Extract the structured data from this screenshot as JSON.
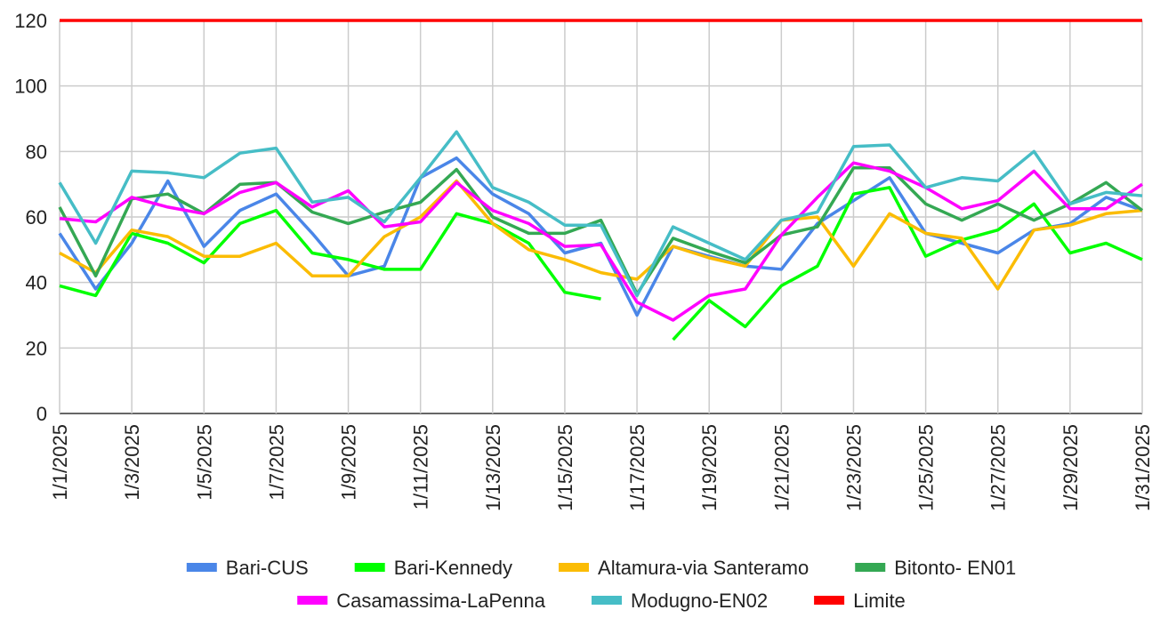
{
  "chart_data": {
    "type": "line",
    "categories": [
      "1/1/2025",
      null,
      "1/3/2025",
      null,
      "1/5/2025",
      null,
      "1/7/2025",
      null,
      "1/9/2025",
      null,
      "1/11/2025",
      null,
      "1/13/2025",
      null,
      "1/15/2025",
      null,
      "1/17/2025",
      null,
      "1/19/2025",
      null,
      "1/21/2025",
      null,
      "1/23/2025",
      null,
      "1/25/2025",
      null,
      "1/27/2025",
      null,
      "1/29/2025",
      null,
      "1/31/2025"
    ],
    "series": [
      {
        "name": "Bari-CUS",
        "color": "#4a86e8",
        "values": [
          55,
          38,
          52,
          71,
          51,
          62,
          67,
          55,
          42,
          45,
          72,
          78,
          67,
          61,
          49,
          52,
          30,
          51,
          48,
          45,
          44,
          58,
          65,
          72,
          55,
          52,
          49,
          56,
          58,
          66,
          62
        ]
      },
      {
        "name": "Bari-Kennedy",
        "color": "#00ff00",
        "values": [
          39,
          36,
          55,
          52,
          46,
          58,
          62,
          49,
          47,
          44,
          44,
          61,
          58,
          52,
          37,
          35,
          null,
          22.5,
          34.5,
          26.5,
          39,
          45,
          67,
          69,
          48,
          53,
          56,
          64,
          49,
          52,
          47
        ]
      },
      {
        "name": "Altamura-via Santeramo",
        "color": "#fbbc04",
        "values": [
          49,
          43,
          56,
          54,
          48,
          48,
          52,
          42,
          42,
          54,
          60,
          71,
          58,
          50,
          47,
          43,
          41,
          51,
          47.5,
          45,
          59,
          60,
          45,
          61,
          55,
          53.5,
          38,
          56,
          57.5,
          61,
          62
        ]
      },
      {
        "name": "Bitonto- EN01",
        "color": "#34a853",
        "values": [
          63,
          42,
          65.5,
          67,
          61,
          70,
          70.5,
          61.5,
          58,
          61.5,
          64.5,
          74.5,
          60,
          55,
          55,
          59,
          36.5,
          53.5,
          49.5,
          46,
          54.5,
          57,
          75,
          75,
          64,
          59,
          64,
          59,
          64,
          70.5,
          62
        ]
      },
      {
        "name": "Casamassima-LaPenna",
        "color": "#ff00ff",
        "values": [
          59.5,
          58.5,
          66,
          63,
          61,
          67.5,
          70.5,
          63,
          68,
          57,
          58.5,
          70.5,
          62,
          58,
          51,
          51.5,
          34,
          28.5,
          36,
          38,
          54.5,
          66,
          76.5,
          74,
          69,
          62.5,
          65,
          74,
          62.5,
          62.5,
          70
        ]
      },
      {
        "name": "Modugno-EN02",
        "color": "#46bdc6",
        "values": [
          70.5,
          52,
          74,
          73.5,
          72,
          79.5,
          81,
          64.5,
          66,
          58.5,
          72,
          86,
          69,
          64.5,
          57.5,
          57.5,
          36,
          57,
          52,
          47,
          59,
          61.5,
          81.5,
          82,
          69,
          72,
          71,
          80,
          64,
          67.5,
          66.5
        ]
      },
      {
        "name": "Limite",
        "color": "#ff0000",
        "values": [
          120,
          120,
          120,
          120,
          120,
          120,
          120,
          120,
          120,
          120,
          120,
          120,
          120,
          120,
          120,
          120,
          120,
          120,
          120,
          120,
          120,
          120,
          120,
          120,
          120,
          120,
          120,
          120,
          120,
          120,
          120
        ]
      }
    ],
    "ylim": [
      0,
      120
    ],
    "yticks": [
      0,
      20,
      40,
      60,
      80,
      100,
      120
    ],
    "grid": true,
    "legend": "bottom"
  }
}
